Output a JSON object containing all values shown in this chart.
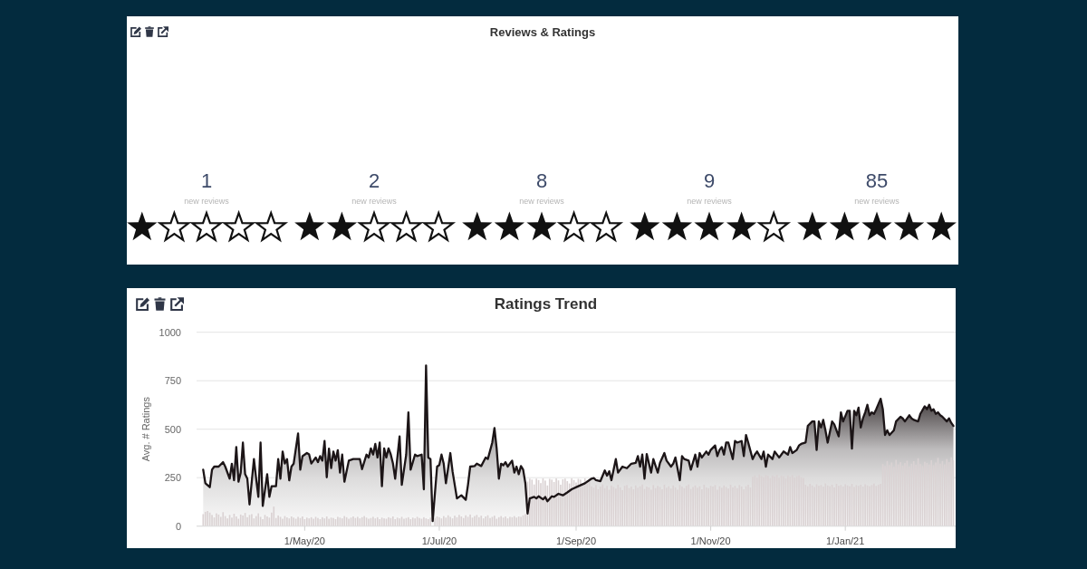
{
  "chart_data": [
    {
      "type": "other",
      "title": "Reviews & Ratings",
      "categories": [
        null,
        null,
        null,
        null,
        null
      ],
      "values": [
        1,
        2,
        8,
        9,
        85
      ],
      "data_labels": true,
      "annotations": [
        "new reviews",
        "new reviews",
        "new reviews",
        "new reviews",
        "new reviews"
      ]
    },
    {
      "type": "bar",
      "title": "Ratings Trend",
      "ylabel": "Avg. # Ratings",
      "x": [
        "2020-03-16",
        "2020-03-17",
        "2020-03-18",
        "2020-03-19",
        "2020-03-20",
        "2020-03-21",
        "2020-03-22",
        "2020-03-23",
        "2020-03-24",
        "2020-03-25",
        "2020-03-26",
        "2020-03-27",
        "2020-03-28",
        "2020-03-29",
        "2020-03-30",
        "2020-03-31",
        "2020-04-01",
        "2020-04-02",
        "2020-04-03",
        "2020-04-04",
        "2020-04-05",
        "2020-04-06",
        "2020-04-07",
        "2020-04-08",
        "2020-04-09",
        "2020-04-10",
        "2020-04-11",
        "2020-04-12",
        "2020-04-13",
        "2020-04-14",
        "2020-04-15",
        "2020-04-16",
        "2020-04-17",
        "2020-04-18",
        "2020-04-19",
        "2020-04-20",
        "2020-04-21",
        "2020-04-22",
        "2020-04-23",
        "2020-04-24",
        "2020-04-25",
        "2020-04-26",
        "2020-04-27",
        "2020-04-28",
        "2020-04-29",
        "2020-04-30",
        "2020-05-01",
        "2020-05-02",
        "2020-05-03",
        "2020-05-04",
        "2020-05-05",
        "2020-05-06",
        "2020-05-07",
        "2020-05-08",
        "2020-05-09",
        "2020-05-10",
        "2020-05-11",
        "2020-05-12",
        "2020-05-13",
        "2020-05-14",
        "2020-05-15",
        "2020-05-16",
        "2020-05-17",
        "2020-05-18",
        "2020-05-19",
        "2020-05-20",
        "2020-05-21",
        "2020-05-22",
        "2020-05-23",
        "2020-05-24",
        "2020-05-25",
        "2020-05-26",
        "2020-05-27",
        "2020-05-28",
        "2020-05-29",
        "2020-05-30",
        "2020-05-31",
        "2020-06-01",
        "2020-06-02",
        "2020-06-03",
        "2020-06-04",
        "2020-06-05",
        "2020-06-06",
        "2020-06-07",
        "2020-06-08",
        "2020-06-09",
        "2020-06-10",
        "2020-06-11",
        "2020-06-12",
        "2020-06-13",
        "2020-06-14",
        "2020-06-15",
        "2020-06-16",
        "2020-06-17",
        "2020-06-18",
        "2020-06-19",
        "2020-06-20",
        "2020-06-21",
        "2020-06-22",
        "2020-06-23",
        "2020-06-24",
        "2020-06-25",
        "2020-06-26",
        "2020-06-27",
        "2020-06-28",
        "2020-06-29",
        "2020-06-30",
        "2020-07-01",
        "2020-07-02",
        "2020-07-03",
        "2020-07-04",
        "2020-07-05",
        "2020-07-06",
        "2020-07-07",
        "2020-07-08",
        "2020-07-09",
        "2020-07-10",
        "2020-07-11",
        "2020-07-12",
        "2020-07-13",
        "2020-07-14",
        "2020-07-15",
        "2020-07-16",
        "2020-07-17",
        "2020-07-18",
        "2020-07-19",
        "2020-07-20",
        "2020-07-21",
        "2020-07-22",
        "2020-07-23",
        "2020-07-24",
        "2020-07-25",
        "2020-07-26",
        "2020-07-27",
        "2020-07-28",
        "2020-07-29",
        "2020-07-30",
        "2020-07-31",
        "2020-08-01",
        "2020-08-02",
        "2020-08-03",
        "2020-08-04",
        "2020-08-05",
        "2020-08-06",
        "2020-08-07",
        "2020-08-08",
        "2020-08-09",
        "2020-08-10",
        "2020-08-11",
        "2020-08-12",
        "2020-08-13",
        "2020-08-14",
        "2020-08-15",
        "2020-08-16",
        "2020-08-17",
        "2020-08-18",
        "2020-08-19",
        "2020-08-20",
        "2020-08-21",
        "2020-08-22",
        "2020-08-23",
        "2020-08-24",
        "2020-08-25",
        "2020-08-26",
        "2020-08-27",
        "2020-08-28",
        "2020-08-29",
        "2020-08-30",
        "2020-08-31",
        "2020-09-01",
        "2020-09-02",
        "2020-09-03",
        "2020-09-04",
        "2020-09-05",
        "2020-09-06",
        "2020-09-07",
        "2020-09-08",
        "2020-09-09",
        "2020-09-10",
        "2020-09-11",
        "2020-09-12",
        "2020-09-13",
        "2020-09-14",
        "2020-09-15",
        "2020-09-16",
        "2020-09-17",
        "2020-09-18",
        "2020-09-19",
        "2020-09-20",
        "2020-09-21",
        "2020-09-22",
        "2020-09-23",
        "2020-09-24",
        "2020-09-25",
        "2020-09-26",
        "2020-09-27",
        "2020-09-28",
        "2020-09-29",
        "2020-09-30",
        "2020-10-01",
        "2020-10-02",
        "2020-10-03",
        "2020-10-04",
        "2020-10-05",
        "2020-10-06",
        "2020-10-07",
        "2020-10-08",
        "2020-10-09",
        "2020-10-10",
        "2020-10-11",
        "2020-10-12",
        "2020-10-13",
        "2020-10-14",
        "2020-10-15",
        "2020-10-16",
        "2020-10-17",
        "2020-10-18",
        "2020-10-19",
        "2020-10-20",
        "2020-10-21",
        "2020-10-22",
        "2020-10-23",
        "2020-10-24",
        "2020-10-25",
        "2020-10-26",
        "2020-10-27",
        "2020-10-28",
        "2020-10-29",
        "2020-10-30",
        "2020-10-31",
        "2020-11-01",
        "2020-11-02",
        "2020-11-03",
        "2020-11-04",
        "2020-11-05",
        "2020-11-06",
        "2020-11-07",
        "2020-11-08",
        "2020-11-09",
        "2020-11-10",
        "2020-11-11",
        "2020-11-12",
        "2020-11-13",
        "2020-11-14",
        "2020-11-15",
        "2020-11-16",
        "2020-11-17",
        "2020-11-18",
        "2020-11-19",
        "2020-11-20",
        "2020-11-21",
        "2020-11-22",
        "2020-11-23",
        "2020-11-24",
        "2020-11-25",
        "2020-11-26",
        "2020-11-27",
        "2020-11-28",
        "2020-11-29",
        "2020-11-30",
        "2020-12-01",
        "2020-12-02",
        "2020-12-03",
        "2020-12-04",
        "2020-12-05",
        "2020-12-06",
        "2020-12-07",
        "2020-12-08",
        "2020-12-09",
        "2020-12-10",
        "2020-12-11",
        "2020-12-12",
        "2020-12-13",
        "2020-12-14",
        "2020-12-15",
        "2020-12-16",
        "2020-12-17",
        "2020-12-18",
        "2020-12-19",
        "2020-12-20",
        "2020-12-21",
        "2020-12-22",
        "2020-12-23",
        "2020-12-24",
        "2020-12-25",
        "2020-12-26",
        "2020-12-27",
        "2020-12-28",
        "2020-12-29",
        "2020-12-30",
        "2020-12-31",
        "2021-01-01",
        "2021-01-02",
        "2021-01-03",
        "2021-01-04",
        "2021-01-05",
        "2021-01-06",
        "2021-01-07",
        "2021-01-08",
        "2021-01-09",
        "2021-01-10",
        "2021-01-11",
        "2021-01-12",
        "2021-01-13",
        "2021-01-14",
        "2021-01-15",
        "2021-01-16",
        "2021-01-17",
        "2021-01-18",
        "2021-01-19",
        "2021-01-20",
        "2021-01-21",
        "2021-01-22",
        "2021-01-23",
        "2021-01-24",
        "2021-01-25",
        "2021-01-26",
        "2021-01-27",
        "2021-01-28",
        "2021-01-29",
        "2021-01-30",
        "2021-01-31",
        "2021-02-01",
        "2021-02-02",
        "2021-02-03",
        "2021-02-04",
        "2021-02-05",
        "2021-02-06",
        "2021-02-07",
        "2021-02-08",
        "2021-02-09",
        "2021-02-10",
        "2021-02-11",
        "2021-02-12",
        "2021-02-13",
        "2021-02-14",
        "2021-02-15",
        "2021-02-16",
        "2021-02-17",
        "2021-02-18",
        "2021-02-19"
      ],
      "xlim": [
        "2020-03-13",
        "2021-02-20"
      ],
      "xticks": [
        {
          "value": "2020-05-01",
          "label": "1/May/20"
        },
        {
          "value": "2020-07-01",
          "label": "1/Jul/20"
        },
        {
          "value": "2020-09-01",
          "label": "1/Sep/20"
        },
        {
          "value": "2020-11-01",
          "label": "1/Nov/20"
        },
        {
          "value": "2021-01-01",
          "label": "1/Jan/21"
        }
      ],
      "ylim": [
        0,
        1000
      ],
      "yticks": [
        0,
        250,
        500,
        750,
        1000
      ],
      "grid": "y",
      "series": [
        {
          "type": "area",
          "color": "#1c1517",
          "x": [
            "2020-03-16",
            "2020-03-17",
            "2020-03-19",
            "2020-03-20",
            "2020-03-21",
            "2020-03-23",
            "2020-03-25",
            "2020-03-26",
            "2020-03-28",
            "2020-03-29",
            "2020-03-30",
            "2020-03-31",
            "2020-04-01",
            "2020-04-02",
            "2020-04-03",
            "2020-04-04",
            "2020-04-05",
            "2020-04-06",
            "2020-04-08",
            "2020-04-09",
            "2020-04-10",
            "2020-04-11",
            "2020-04-12",
            "2020-04-14",
            "2020-04-15",
            "2020-04-16",
            "2020-04-18",
            "2020-04-19",
            "2020-04-20",
            "2020-04-21",
            "2020-04-22",
            "2020-04-23",
            "2020-04-24",
            "2020-04-25",
            "2020-04-26",
            "2020-04-28",
            "2020-04-29",
            "2020-04-30",
            "2020-05-02",
            "2020-05-03",
            "2020-05-04",
            "2020-05-06",
            "2020-05-07",
            "2020-05-08",
            "2020-05-09",
            "2020-05-10",
            "2020-05-11",
            "2020-05-12",
            "2020-05-13",
            "2020-05-14",
            "2020-05-15",
            "2020-05-16",
            "2020-05-17",
            "2020-05-18",
            "2020-05-19",
            "2020-05-21",
            "2020-05-23",
            "2020-05-26",
            "2020-05-27",
            "2020-05-29",
            "2020-05-30",
            "2020-05-31",
            "2020-06-01",
            "2020-06-02",
            "2020-06-03",
            "2020-06-04",
            "2020-06-05",
            "2020-06-06",
            "2020-06-07",
            "2020-06-08",
            "2020-06-09",
            "2020-06-10",
            "2020-06-11",
            "2020-06-13",
            "2020-06-14",
            "2020-06-16",
            "2020-06-17",
            "2020-06-18",
            "2020-06-20",
            "2020-06-21",
            "2020-06-23",
            "2020-06-24",
            "2020-06-25",
            "2020-06-26",
            "2020-06-27",
            "2020-06-28",
            "2020-06-30",
            "2020-07-01",
            "2020-07-02",
            "2020-07-03",
            "2020-07-04",
            "2020-07-06",
            "2020-07-07",
            "2020-07-09",
            "2020-07-11",
            "2020-07-13",
            "2020-07-14",
            "2020-07-15",
            "2020-07-17",
            "2020-07-18",
            "2020-07-20",
            "2020-07-22",
            "2020-07-23",
            "2020-07-25",
            "2020-07-26",
            "2020-07-27",
            "2020-07-28",
            "2020-07-29",
            "2020-07-30",
            "2020-07-31",
            "2020-08-01",
            "2020-08-03",
            "2020-08-04",
            "2020-08-05",
            "2020-08-06",
            "2020-08-07",
            "2020-08-08",
            "2020-08-09",
            "2020-08-10",
            "2020-08-11",
            "2020-08-13",
            "2020-08-14",
            "2020-08-15",
            "2020-08-17",
            "2020-08-18",
            "2020-08-19",
            "2020-08-21",
            "2020-08-22",
            "2020-08-24",
            "2020-08-26",
            "2020-08-28",
            "2020-08-30",
            "2020-09-02",
            "2020-09-05",
            "2020-09-08",
            "2020-09-09",
            "2020-09-10",
            "2020-09-12",
            "2020-09-14",
            "2020-09-15",
            "2020-09-16",
            "2020-09-17",
            "2020-09-19",
            "2020-09-20",
            "2020-09-22",
            "2020-09-24",
            "2020-09-26",
            "2020-09-28",
            "2020-09-29",
            "2020-09-30",
            "2020-10-01",
            "2020-10-02",
            "2020-10-03",
            "2020-10-05",
            "2020-10-06",
            "2020-10-08",
            "2020-10-09",
            "2020-10-11",
            "2020-10-12",
            "2020-10-14",
            "2020-10-15",
            "2020-10-16",
            "2020-10-18",
            "2020-10-19",
            "2020-10-20",
            "2020-10-22",
            "2020-10-23",
            "2020-10-25",
            "2020-10-26",
            "2020-10-27",
            "2020-10-28",
            "2020-10-30",
            "2020-10-31",
            "2020-11-01",
            "2020-11-03",
            "2020-11-04",
            "2020-11-05",
            "2020-11-06",
            "2020-11-07",
            "2020-11-08",
            "2020-11-09",
            "2020-11-11",
            "2020-11-12",
            "2020-11-13",
            "2020-11-15",
            "2020-11-16",
            "2020-11-17",
            "2020-11-18",
            "2020-11-20",
            "2020-11-21",
            "2020-11-22",
            "2020-11-24",
            "2020-11-25",
            "2020-11-26",
            "2020-11-27",
            "2020-11-29",
            "2020-11-30",
            "2020-12-02",
            "2020-12-03",
            "2020-12-04",
            "2020-12-06",
            "2020-12-07",
            "2020-12-08",
            "2020-12-10",
            "2020-12-11",
            "2020-12-12",
            "2020-12-14",
            "2020-12-15",
            "2020-12-17",
            "2020-12-18",
            "2020-12-19",
            "2020-12-20",
            "2020-12-21",
            "2020-12-22",
            "2020-12-23",
            "2020-12-24",
            "2020-12-26",
            "2020-12-27",
            "2020-12-29",
            "2020-12-30",
            "2020-12-31",
            "2021-01-02",
            "2021-01-03",
            "2021-01-04",
            "2021-01-05",
            "2021-01-06",
            "2021-01-07",
            "2021-01-08",
            "2021-01-09",
            "2021-01-10",
            "2021-01-11",
            "2021-01-12",
            "2021-01-13",
            "2021-01-14",
            "2021-01-15",
            "2021-01-17",
            "2021-01-18",
            "2021-01-19",
            "2021-01-20",
            "2021-01-21",
            "2021-01-23",
            "2021-01-24",
            "2021-01-26",
            "2021-01-27",
            "2021-01-28",
            "2021-01-30",
            "2021-01-31",
            "2021-02-01",
            "2021-02-03",
            "2021-02-04",
            "2021-02-06",
            "2021-02-07",
            "2021-02-08",
            "2021-02-09",
            "2021-02-10",
            "2021-02-11",
            "2021-02-12",
            "2021-02-13",
            "2021-02-14",
            "2021-02-16",
            "2021-02-17",
            "2021-02-18",
            "2021-02-19"
          ],
          "values": [
            291,
            221,
            201,
            291,
            307,
            307,
            330,
            307,
            245,
            322,
            237,
            408,
            229,
            276,
            431,
            268,
            245,
            112,
            346,
            245,
            151,
            431,
            104,
            268,
            151,
            206,
            206,
            346,
            245,
            385,
            323,
            346,
            236,
            307,
            322,
            478,
            291,
            361,
            377,
            370,
            323,
            354,
            330,
            361,
            338,
            439,
            252,
            400,
            299,
            385,
            338,
            392,
            276,
            369,
            229,
            338,
            346,
            346,
            294,
            369,
            354,
            401,
            369,
            424,
            354,
            431,
            206,
            401,
            354,
            401,
            370,
            323,
            245,
            463,
            213,
            369,
            587,
            291,
            369,
            361,
            369,
            190,
            829,
            354,
            346,
            26,
            307,
            315,
            369,
            322,
            221,
            377,
            283,
            143,
            159,
            136,
            213,
            307,
            310,
            322,
            310,
            354,
            346,
            431,
            506,
            400,
            245,
            322,
            314,
            330,
            307,
            338,
            276,
            307,
            268,
            310,
            291,
            221,
            65,
            143,
            151,
            143,
            154,
            138,
            151,
            128,
            154,
            151,
            167,
            159,
            174,
            190,
            206,
            221,
            245,
            248,
            237,
            232,
            287,
            260,
            283,
            237,
            346,
            276,
            307,
            299,
            322,
            326,
            361,
            307,
            369,
            245,
            372,
            276,
            346,
            276,
            326,
            377,
            338,
            307,
            322,
            354,
            237,
            361,
            346,
            338,
            291,
            369,
            307,
            377,
            354,
            385,
            369,
            393,
            416,
            361,
            393,
            408,
            369,
            431,
            431,
            346,
            439,
            431,
            439,
            361,
            470,
            431,
            346,
            369,
            385,
            346,
            385,
            307,
            369,
            346,
            385,
            354,
            369,
            385,
            369,
            408,
            377,
            393,
            416,
            424,
            431,
            517,
            540,
            540,
            393,
            540,
            509,
            548,
            494,
            431,
            540,
            525,
            463,
            587,
            540,
            595,
            595,
            400,
            595,
            572,
            611,
            509,
            556,
            587,
            626,
            572,
            587,
            579,
            603,
            657,
            603,
            470,
            494,
            470,
            494,
            540,
            564,
            556,
            540,
            572,
            556,
            548,
            540,
            579,
            618,
            603,
            626,
            595,
            603,
            579,
            587,
            572,
            564,
            540,
            556,
            533,
            517
          ]
        },
        {
          "type": "bar",
          "color": "#dad2d3",
          "values": [
            62,
            74,
            78,
            70,
            58,
            45,
            66,
            60,
            48,
            72,
            52,
            40,
            58,
            44,
            64,
            50,
            38,
            60,
            55,
            68,
            46,
            58,
            62,
            40,
            52,
            66,
            48,
            36,
            58,
            50,
            44,
            70,
            101,
            42,
            55,
            48,
            38,
            52,
            45,
            40,
            50,
            44,
            38,
            48,
            42,
            50,
            36,
            44,
            40,
            46,
            38,
            48,
            42,
            36,
            46,
            40,
            50,
            38,
            44,
            42,
            36,
            48,
            44,
            40,
            52,
            46,
            38,
            44,
            50,
            42,
            48,
            40,
            46,
            52,
            44,
            38,
            42,
            48,
            40,
            46,
            36,
            44,
            40,
            38,
            46,
            42,
            50,
            36,
            44,
            40,
            48,
            38,
            42,
            46,
            36,
            44,
            40,
            48,
            42,
            38,
            46,
            40,
            36,
            44,
            null,
            42,
            50,
            46,
            40,
            52,
            44,
            56,
            48,
            40,
            54,
            46,
            58,
            50,
            42,
            56,
            48,
            60,
            44,
            52,
            58,
            46,
            54,
            40,
            50,
            56,
            42,
            48,
            54,
            38,
            46,
            52,
            44,
            50,
            40,
            48,
            46,
            52,
            44,
            50,
            48,
            56,
            62,
            230,
            245,
            240,
            215,
            245,
            238,
            222,
            246,
            235,
            210,
            244,
            240,
            228,
            246,
            236,
            214,
            242,
            245,
            232,
            220,
            246,
            238,
            225,
            244,
            240,
            218,
            246,
            235,
            242,
            205,
            198,
            212,
            190,
            204,
            215,
            196,
            208,
            188,
            210,
            202,
            194,
            214,
            200,
            186,
            208,
            212,
            196,
            204,
            190,
            210,
            198,
            206,
            215,
            192,
            204,
            200,
            188,
            212,
            196,
            208,
            202,
            190,
            214,
            198,
            206,
            194,
            210,
            200,
            188,
            212,
            204,
            196,
            208,
            215,
            192,
            202,
            210,
            198,
            206,
            190,
            214,
            200,
            196,
            208,
            204,
            212,
            188,
            206,
            198,
            210,
            202,
            194,
            214,
            200,
            208,
            196,
            212,
            204,
            190,
            206,
            214,
            200,
            255,
            262,
            250,
            266,
            258,
            252,
            264,
            260,
            248,
            262,
            256,
            265,
            250,
            260,
            258,
            246,
            262,
            254,
            264,
            250,
            258,
            262,
            252,
            248,
            214,
            206,
            218,
            210,
            202,
            216,
            208,
            212,
            204,
            220,
            210,
            206,
            214,
            200,
            218,
            208,
            212,
            204,
            216,
            210,
            206,
            218,
            202,
            212,
            208,
            214,
            204,
            216,
            210,
            206,
            212,
            220,
            208,
            214,
            218,
            320,
            310,
            336,
            315,
            328,
            305,
            342,
            318,
            330,
            312,
            325,
            338,
            308,
            322,
            335,
            316,
            350,
            320,
            310,
            332,
            326,
            318,
            340,
            314,
            328,
            352,
            322,
            336,
            318,
            346,
            330,
            355,
            340
          ]
        }
      ]
    }
  ]
}
